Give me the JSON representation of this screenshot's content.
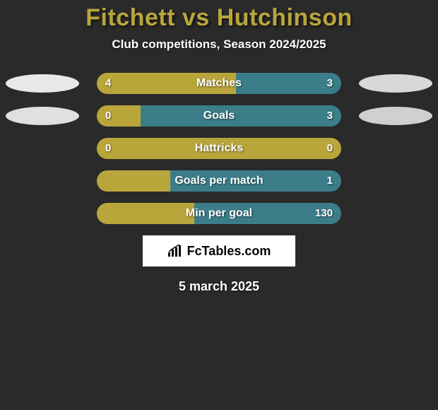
{
  "colors": {
    "background": "#2a2a2a",
    "title": "#b9a63b",
    "text": "#ffffff",
    "left_fill": "#b9a63b",
    "right_fill": "#3b7d89",
    "ellipse_left_1": "#e8e8e8",
    "ellipse_right_1": "#d8d8d8",
    "ellipse_left_2": "#e0e0e0",
    "ellipse_right_2": "#d0d0d0",
    "brand_bg": "#ffffff",
    "brand_text": "#000000"
  },
  "title": "Fitchett vs Hutchinson",
  "subtitle": "Club competitions, Season 2024/2025",
  "brand": "FcTables.com",
  "date": "5 march 2025",
  "stats": [
    {
      "label": "Matches",
      "left_value": "4",
      "right_value": "3",
      "left_pct": 57,
      "right_pct": 43,
      "show_left_ellipse": true,
      "show_right_ellipse": true,
      "ellipse_left_color": "#e8e8e8",
      "ellipse_right_color": "#d8d8d8"
    },
    {
      "label": "Goals",
      "left_value": "0",
      "right_value": "3",
      "left_pct": 18,
      "right_pct": 82,
      "show_left_ellipse": true,
      "show_right_ellipse": true,
      "ellipse_left_color": "#e0e0e0",
      "ellipse_right_color": "#d0d0d0"
    },
    {
      "label": "Hattricks",
      "left_value": "0",
      "right_value": "0",
      "left_pct": 100,
      "right_pct": 0,
      "show_left_ellipse": false,
      "show_right_ellipse": false
    },
    {
      "label": "Goals per match",
      "left_value": "",
      "right_value": "1",
      "left_pct": 30,
      "right_pct": 70,
      "show_left_ellipse": false,
      "show_right_ellipse": false
    },
    {
      "label": "Min per goal",
      "left_value": "",
      "right_value": "130",
      "left_pct": 40,
      "right_pct": 60,
      "show_left_ellipse": false,
      "show_right_ellipse": false
    }
  ]
}
